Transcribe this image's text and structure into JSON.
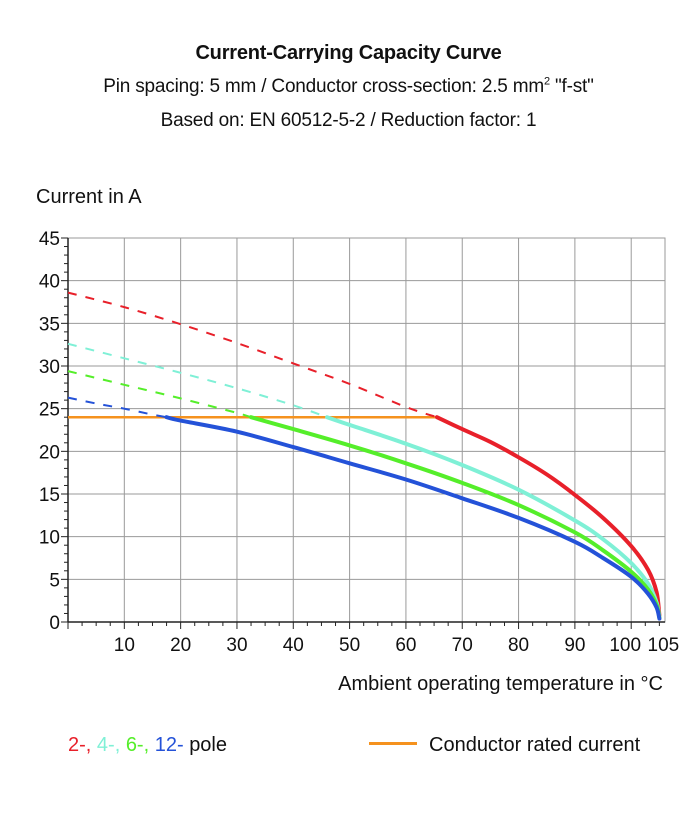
{
  "title": "Current-Carrying Capacity Curve",
  "subtitle_line1_a": "Pin spacing: 5 mm / Conductor cross-section: 2.5 mm",
  "subtitle_line1_sup": "2",
  "subtitle_line1_b": " \"f-st\"",
  "subtitle_line2": "Based on: EN 60512-5-2 / Reduction factor: 1",
  "colors": {
    "pole_2": "#e8202a",
    "pole_4": "#7ff0d6",
    "pole_6": "#55ee2a",
    "pole_12": "#2452d8",
    "rated": "#f5921e",
    "grid": "#9a9a9a",
    "axis": "#222222"
  },
  "legend": {
    "pole_2": "2-,",
    "pole_4": "4-,",
    "pole_6": "6-,",
    "pole_12": "12-",
    "pole_suffix": "pole",
    "rated": "Conductor rated current"
  },
  "chart_data": {
    "type": "line",
    "xlabel": "Ambient operating temperature in °C",
    "ylabel": "Current in A",
    "xlim": [
      0,
      106
    ],
    "ylim": [
      0,
      45
    ],
    "x_ticks": [
      10,
      20,
      30,
      40,
      50,
      60,
      70,
      80,
      90,
      100,
      105
    ],
    "y_ticks": [
      0,
      5,
      10,
      15,
      20,
      25,
      30,
      35,
      40,
      45
    ],
    "grid": true,
    "rated_current": 24,
    "series": [
      {
        "name": "2-",
        "color_key": "pole_2",
        "dashed": [
          [
            0,
            38.6
          ],
          [
            10,
            36.9
          ],
          [
            20,
            34.9
          ],
          [
            30,
            32.7
          ],
          [
            40,
            30.3
          ],
          [
            50,
            27.9
          ],
          [
            60,
            25.2
          ],
          [
            65.5,
            24
          ]
        ],
        "solid": [
          [
            65.5,
            24
          ],
          [
            70,
            22.6
          ],
          [
            75,
            21.1
          ],
          [
            80,
            19.3
          ],
          [
            85,
            17.3
          ],
          [
            90,
            14.9
          ],
          [
            95,
            12.2
          ],
          [
            100,
            8.9
          ],
          [
            103,
            6.1
          ],
          [
            104.5,
            3.5
          ],
          [
            105,
            0.8
          ]
        ]
      },
      {
        "name": "4-",
        "color_key": "pole_4",
        "dashed": [
          [
            0,
            32.6
          ],
          [
            10,
            30.9
          ],
          [
            20,
            29.2
          ],
          [
            30,
            27.4
          ],
          [
            40,
            25.4
          ],
          [
            46,
            24
          ]
        ],
        "solid": [
          [
            46,
            24
          ],
          [
            50,
            23.1
          ],
          [
            60,
            20.9
          ],
          [
            70,
            18.4
          ],
          [
            80,
            15.5
          ],
          [
            90,
            11.9
          ],
          [
            95,
            9.7
          ],
          [
            100,
            6.9
          ],
          [
            103,
            4.5
          ],
          [
            104.5,
            2.3
          ],
          [
            105,
            0.6
          ]
        ]
      },
      {
        "name": "6-",
        "color_key": "pole_6",
        "dashed": [
          [
            0,
            29.4
          ],
          [
            10,
            27.8
          ],
          [
            20,
            26.2
          ],
          [
            30,
            24.5
          ],
          [
            32.5,
            24
          ]
        ],
        "solid": [
          [
            32.5,
            24
          ],
          [
            40,
            22.6
          ],
          [
            50,
            20.7
          ],
          [
            60,
            18.6
          ],
          [
            70,
            16.3
          ],
          [
            80,
            13.7
          ],
          [
            90,
            10.5
          ],
          [
            95,
            8.4
          ],
          [
            100,
            5.9
          ],
          [
            103,
            3.8
          ],
          [
            104.5,
            2
          ],
          [
            105,
            0.5
          ]
        ]
      },
      {
        "name": "12-",
        "color_key": "pole_12",
        "dashed": [
          [
            0,
            26.3
          ],
          [
            5,
            25.6
          ],
          [
            10,
            25
          ],
          [
            15,
            24.3
          ],
          [
            17.5,
            24
          ]
        ],
        "solid": [
          [
            17.5,
            24
          ],
          [
            20,
            23.6
          ],
          [
            30,
            22.3
          ],
          [
            40,
            20.5
          ],
          [
            50,
            18.6
          ],
          [
            60,
            16.7
          ],
          [
            70,
            14.5
          ],
          [
            80,
            12.2
          ],
          [
            90,
            9.4
          ],
          [
            95,
            7.5
          ],
          [
            100,
            5.3
          ],
          [
            103,
            3.3
          ],
          [
            104.5,
            1.7
          ],
          [
            105,
            0.4
          ]
        ]
      }
    ]
  }
}
